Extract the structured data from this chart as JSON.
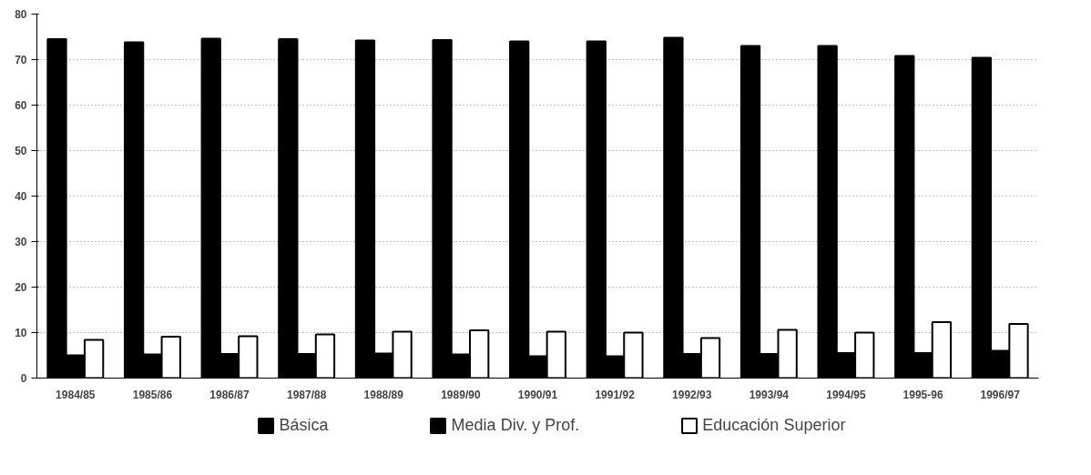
{
  "chart_data": {
    "type": "bar",
    "categories": [
      "1984/85",
      "1985/86",
      "1986/87",
      "1987/88",
      "1988/89",
      "1989/90",
      "1990/91",
      "1991/92",
      "1992/93",
      "1993/94",
      "1994/95",
      "1995-96",
      "1996/97"
    ],
    "series": [
      {
        "name": "Básica",
        "color": "#000000",
        "values": [
          74.5,
          73.8,
          74.6,
          74.5,
          74.2,
          74.3,
          74.0,
          74.0,
          74.8,
          73.0,
          73.0,
          70.8,
          70.4
        ]
      },
      {
        "name": "Media Div. y Prof.",
        "color": "#000000",
        "values": [
          5.0,
          5.2,
          5.3,
          5.3,
          5.4,
          5.2,
          4.8,
          4.8,
          5.3,
          5.3,
          5.5,
          5.5,
          6.0
        ]
      },
      {
        "name": "Educación Superior",
        "color": "#ffffff",
        "values": [
          8.4,
          9.1,
          9.2,
          9.6,
          10.2,
          10.5,
          10.2,
          10.0,
          8.8,
          10.6,
          10.0,
          12.3,
          11.9
        ]
      }
    ],
    "ylim": [
      0,
      80
    ],
    "yticks": [
      0,
      10,
      20,
      30,
      40,
      50,
      60,
      70,
      80
    ],
    "grid": "y",
    "legend": "bottom"
  }
}
